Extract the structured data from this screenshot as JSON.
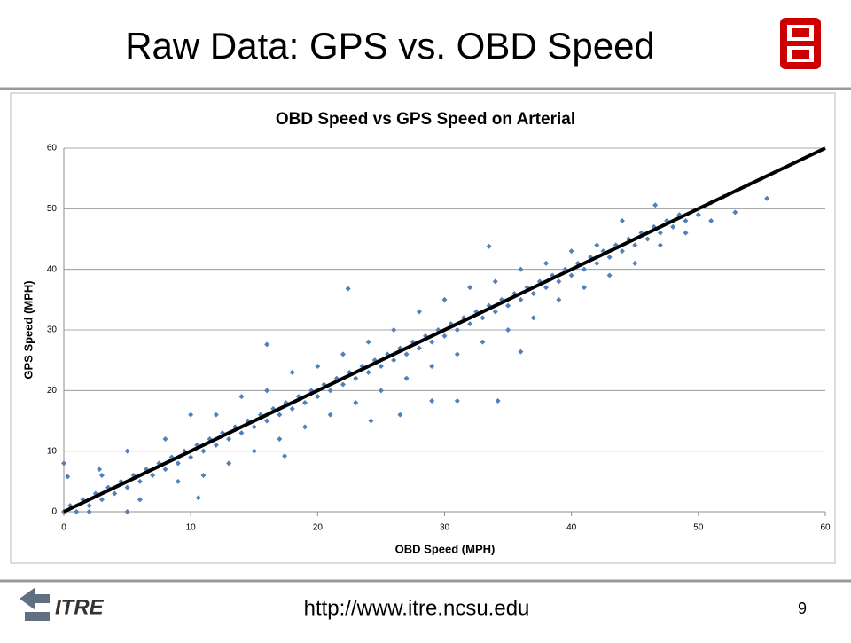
{
  "slide_title": "Raw Data: GPS vs. OBD Speed",
  "footer": {
    "logo_text": "ITRE",
    "url": "http://www.itre.ncsu.edu",
    "page_number": "9"
  },
  "chart_data": {
    "type": "scatter",
    "title": "OBD Speed vs GPS Speed on Arterial",
    "x_label": "OBD Speed (MPH)",
    "y_label": "GPS Speed (MPH)",
    "xlim": [
      0,
      60
    ],
    "ylim": [
      0,
      60
    ],
    "xticks": [
      0,
      10,
      20,
      30,
      40,
      50,
      60
    ],
    "yticks": [
      0,
      10,
      20,
      30,
      40,
      50,
      60
    ],
    "grid": true,
    "color": "#4f81bd",
    "x": [
      0,
      0.5,
      1,
      1.5,
      2,
      2.5,
      3,
      3.5,
      4,
      4.5,
      5,
      5.5,
      6,
      6.5,
      7,
      7.5,
      8,
      8.5,
      9,
      9.5,
      10,
      10.5,
      11,
      11.5,
      12,
      12.5,
      13,
      13.5,
      14,
      14.5,
      15,
      15.5,
      16,
      16.5,
      17,
      17.5,
      18,
      18.5,
      19,
      19.5,
      20,
      20.5,
      21,
      21.5,
      22,
      22.5,
      23,
      23.5,
      24,
      24.5,
      25,
      25.5,
      26,
      26.5,
      27,
      27.5,
      28,
      28.5,
      29,
      29.5,
      30,
      30.5,
      31,
      31.5,
      32,
      32.5,
      33,
      33.5,
      34,
      34.5,
      35,
      35.5,
      36,
      36.5,
      37,
      37.5,
      38,
      38.5,
      39,
      39.5,
      40,
      40.5,
      41,
      41.5,
      42,
      42.5,
      43,
      43.5,
      44,
      44.5,
      45,
      45.5,
      46,
      46.5,
      47,
      47.5,
      48,
      48.5,
      49,
      50,
      51,
      52,
      53,
      54,
      55,
      3,
      5,
      8,
      10,
      12,
      14,
      16,
      18,
      20,
      22,
      24,
      26,
      28,
      30,
      32,
      34,
      36,
      38,
      40,
      42,
      44,
      2,
      6,
      9,
      11,
      13,
      15,
      17,
      19,
      21,
      23,
      25,
      27,
      29,
      31,
      33,
      35,
      37,
      39,
      41,
      43,
      45,
      47,
      49,
      51,
      22.4,
      16,
      33.5,
      34.2,
      31,
      29,
      26.5,
      24.2,
      17.4,
      10.6,
      5,
      0,
      0.3,
      2.8,
      36,
      46.6,
      55.4,
      52.9
    ],
    "values": [
      0,
      1,
      0,
      2,
      1,
      3,
      2,
      4,
      3,
      5,
      4,
      6,
      5,
      7,
      6,
      8,
      7,
      9,
      8,
      10,
      9,
      11,
      10,
      12,
      11,
      13,
      12,
      14,
      13,
      15,
      14,
      16,
      15,
      17,
      16,
      18,
      17,
      19,
      18,
      20,
      19,
      21,
      20,
      22,
      21,
      23,
      22,
      24,
      23,
      25,
      24,
      26,
      25,
      27,
      26,
      28,
      27,
      29,
      28,
      30,
      29,
      31,
      30,
      32,
      31,
      33,
      32,
      34,
      33,
      35,
      34,
      36,
      35,
      37,
      36,
      38,
      37,
      39,
      38,
      40,
      39,
      41,
      40,
      42,
      41,
      43,
      42,
      44,
      43,
      45,
      44,
      46,
      45,
      47,
      46,
      48,
      47,
      49,
      48,
      49,
      51,
      52,
      53,
      54,
      55,
      6,
      10,
      12,
      16,
      16,
      19,
      20,
      23,
      24,
      26,
      28,
      30,
      33,
      35,
      37,
      38,
      40,
      41,
      43,
      44,
      48,
      0,
      2,
      5,
      6,
      8,
      10,
      12,
      14,
      16,
      18,
      20,
      22,
      24,
      26,
      28,
      30,
      32,
      35,
      37,
      39,
      41,
      44,
      46,
      48,
      36.8,
      27.6,
      43.8,
      18.3,
      18.3,
      18.3,
      16,
      15,
      9.2,
      2.3,
      0,
      8,
      5.8,
      7,
      26.4,
      50.6,
      51.7,
      49.4
    ],
    "reference_line": {
      "x": [
        0,
        60
      ],
      "y": [
        0,
        60
      ],
      "color": "#000000"
    }
  }
}
